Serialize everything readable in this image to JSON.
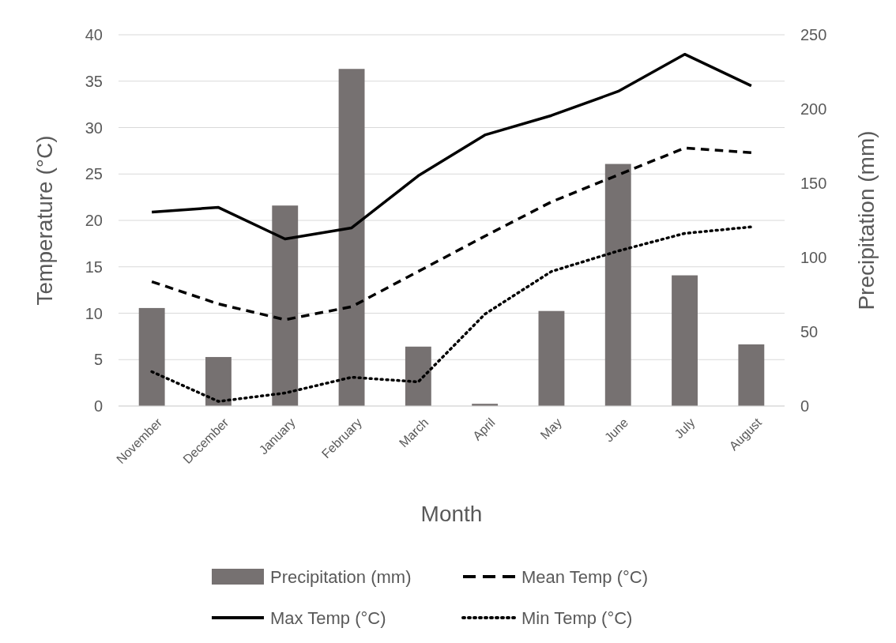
{
  "chart_data": {
    "type": "bar",
    "xlabel": "Month",
    "ylabel": "Temperature (°C)",
    "y2label": "Precipitation (mm)",
    "categories": [
      "November",
      "December",
      "January",
      "February",
      "March",
      "April",
      "May",
      "June",
      "July",
      "August"
    ],
    "series": [
      {
        "name": "Precipitation (mm)",
        "axis": "y2",
        "color": "#767171",
        "values": [
          66,
          33,
          135,
          227,
          40,
          1.5,
          64,
          163,
          88,
          41.5
        ]
      },
      {
        "name": "Mean Temp (°C)",
        "type": "line",
        "line_style": "dashed",
        "color": "#000000",
        "values": [
          13.4,
          11.0,
          9.3,
          10.7,
          14.5,
          18.3,
          22.0,
          24.9,
          27.8,
          27.3
        ]
      },
      {
        "name": "Max Temp (°C)",
        "type": "line",
        "line_style": "solid",
        "color": "#000000",
        "values": [
          20.9,
          21.4,
          18.0,
          19.2,
          24.8,
          29.2,
          31.3,
          33.9,
          37.9,
          34.5
        ]
      },
      {
        "name": "Min Temp (°C)",
        "type": "line",
        "line_style": "dotted",
        "color": "#000000",
        "values": [
          3.7,
          0.5,
          1.4,
          3.1,
          2.6,
          9.9,
          14.5,
          16.7,
          18.6,
          19.3
        ]
      }
    ],
    "ylim": [
      0,
      40
    ],
    "yticks": [
      0,
      5,
      10,
      15,
      20,
      25,
      30,
      35,
      40
    ],
    "y2lim": [
      0,
      250
    ],
    "y2ticks": [
      0,
      50,
      100,
      150,
      200,
      250
    ],
    "grid": "y",
    "legend": "bottom",
    "marker": "none"
  }
}
